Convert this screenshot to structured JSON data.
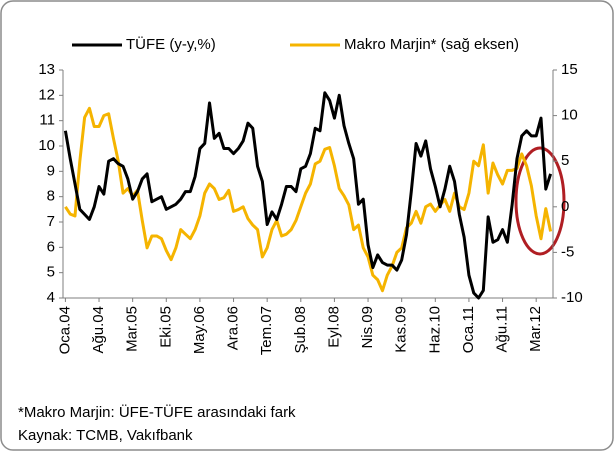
{
  "chart_data": {
    "type": "line",
    "categories": [
      "Oca.04",
      null,
      null,
      null,
      null,
      null,
      null,
      "Ağu.04",
      null,
      null,
      null,
      null,
      null,
      null,
      "Mar.05",
      null,
      null,
      null,
      null,
      null,
      null,
      "Eki.05",
      null,
      null,
      null,
      null,
      null,
      null,
      "May.06",
      null,
      null,
      null,
      null,
      null,
      null,
      "Ara.06",
      null,
      null,
      null,
      null,
      null,
      null,
      "Tem.07",
      null,
      null,
      null,
      null,
      null,
      null,
      "Şub.08",
      null,
      null,
      null,
      null,
      null,
      null,
      "Eyl.08",
      null,
      null,
      null,
      null,
      null,
      null,
      "Nis.09",
      null,
      null,
      null,
      null,
      null,
      null,
      "Kas.09",
      null,
      null,
      null,
      null,
      null,
      null,
      "Haz.10",
      null,
      null,
      null,
      null,
      null,
      null,
      "Oca.11",
      null,
      null,
      null,
      null,
      null,
      null,
      "Ağu.11",
      null,
      null,
      null,
      null,
      null,
      null,
      "Mar.12",
      null,
      null,
      null
    ],
    "series": [
      {
        "name": "TÜFE (y-y,%)",
        "color": "#000000",
        "axis": "y",
        "values": [
          10.6,
          9.5,
          8.5,
          7.5,
          7.3,
          7.1,
          7.6,
          8.4,
          8.1,
          9.4,
          9.5,
          9.3,
          9.2,
          8.7,
          7.9,
          8.2,
          8.7,
          8.9,
          7.8,
          7.9,
          8.0,
          7.5,
          7.6,
          7.7,
          7.9,
          8.2,
          8.2,
          8.8,
          9.9,
          10.1,
          11.7,
          10.3,
          10.5,
          9.9,
          9.9,
          9.7,
          9.9,
          10.2,
          10.9,
          10.7,
          9.2,
          8.6,
          6.9,
          7.4,
          7.1,
          7.7,
          8.4,
          8.4,
          8.2,
          9.1,
          9.2,
          9.7,
          10.7,
          10.6,
          12.1,
          11.8,
          11.1,
          12.0,
          10.8,
          10.1,
          9.5,
          7.7,
          7.9,
          6.1,
          5.2,
          5.7,
          5.4,
          5.3,
          5.3,
          5.1,
          5.5,
          6.5,
          8.2,
          10.1,
          9.6,
          10.2,
          9.1,
          8.4,
          7.6,
          8.3,
          9.2,
          8.6,
          7.3,
          6.4,
          4.9,
          4.2,
          4.0,
          4.3,
          7.2,
          6.2,
          6.3,
          6.7,
          6.2,
          7.7,
          9.5,
          10.4,
          10.6,
          10.4,
          10.4,
          11.1,
          8.3,
          8.9
        ]
      },
      {
        "name": "Makro Marjin* (sağ eksen)",
        "color": "#f5b400",
        "axis": "y2",
        "values": [
          0,
          -0.8,
          -1,
          5,
          9.8,
          10.8,
          8.8,
          8.8,
          10,
          10.2,
          7.5,
          5,
          1.5,
          2,
          1.2,
          1.8,
          -1.5,
          -4.5,
          -3.2,
          -3.2,
          -3.5,
          -4.8,
          -5.8,
          -4.5,
          -2.5,
          -3,
          -3.5,
          -2.5,
          -1,
          1.5,
          2.5,
          2,
          0.8,
          1,
          1.8,
          -0.5,
          -0.3,
          0,
          -1.3,
          -2,
          -2.5,
          -5.5,
          -4.5,
          -2.5,
          -1.5,
          -3.2,
          -3,
          -2.5,
          -1.5,
          0,
          1.5,
          2.5,
          4.7,
          5,
          6.3,
          6.5,
          4.5,
          2,
          1.2,
          0.2,
          -2.5,
          -2,
          -4.5,
          -5.5,
          -7.5,
          -8,
          -9.2,
          -7.5,
          -6.5,
          -5,
          -4.5,
          -2.3,
          -1.8,
          -0.5,
          -1.8,
          0,
          0.3,
          -0.5,
          0.2,
          0.8,
          -0.5,
          1.5,
          0,
          -0.3,
          1.5,
          5,
          4.5,
          6.8,
          1.5,
          4.8,
          3.5,
          2.5,
          4,
          4,
          4.2,
          5.8,
          4.5,
          2.3,
          -1,
          -3.5,
          -0.2,
          -2.7
        ]
      }
    ],
    "ylim": [
      4,
      13
    ],
    "yticks": [
      4,
      5,
      6,
      7,
      8,
      9,
      10,
      11,
      12,
      13
    ],
    "y2lim": [
      -10,
      15
    ],
    "y2ticks": [
      -10,
      -5,
      0,
      5,
      10,
      15
    ],
    "grid": false,
    "legend": "top",
    "note": "*Makro Marjin: ÜFE-TÜFE arasındaki fark",
    "source": "Kaynak: TCMB, Vakıfbank"
  }
}
